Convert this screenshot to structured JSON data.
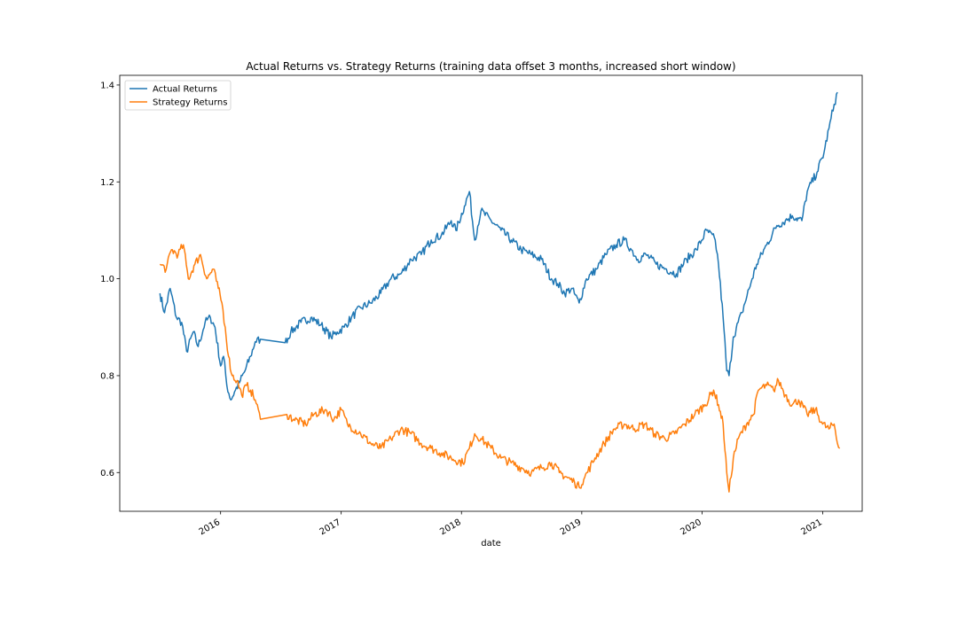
{
  "chart_data": {
    "type": "line",
    "title": "Actual Returns vs. Strategy Returns (training data offset 3 months, increased short window)",
    "xlabel": "date",
    "ylabel": "",
    "x_type": "date",
    "xlim": [
      "2015-03-01",
      "2021-05-01"
    ],
    "ylim": [
      0.52,
      1.42
    ],
    "x_ticks": [
      {
        "label": "2016",
        "date": "2016-01-01"
      },
      {
        "label": "2017",
        "date": "2017-01-01"
      },
      {
        "label": "2018",
        "date": "2018-01-01"
      },
      {
        "label": "2019",
        "date": "2019-01-01"
      },
      {
        "label": "2020",
        "date": "2020-01-01"
      },
      {
        "label": "2021",
        "date": "2021-01-01"
      }
    ],
    "y_ticks": [
      0.6,
      0.8,
      1.0,
      1.2,
      1.4
    ],
    "y_tick_labels": [
      "0.6",
      "0.8",
      "1.0",
      "1.2",
      "1.4"
    ],
    "grid": false,
    "legend_position": "top-left",
    "series": [
      {
        "name": "Actual Returns",
        "color": "#1f77b4",
        "points": [
          [
            "2015-07-01",
            0.97
          ],
          [
            "2015-07-15",
            0.93
          ],
          [
            "2015-08-01",
            0.98
          ],
          [
            "2015-08-20",
            0.92
          ],
          [
            "2015-09-05",
            0.91
          ],
          [
            "2015-09-20",
            0.85
          ],
          [
            "2015-10-10",
            0.89
          ],
          [
            "2015-10-25",
            0.86
          ],
          [
            "2015-11-15",
            0.91
          ],
          [
            "2015-12-01",
            0.92
          ],
          [
            "2015-12-15",
            0.9
          ],
          [
            "2016-01-01",
            0.82
          ],
          [
            "2016-01-10",
            0.84
          ],
          [
            "2016-01-20",
            0.78
          ],
          [
            "2016-02-01",
            0.75
          ],
          [
            "2016-02-15",
            0.77
          ],
          [
            "2016-03-01",
            0.79
          ],
          [
            "2016-03-15",
            0.81
          ],
          [
            "2016-04-01",
            0.84
          ],
          [
            "2016-04-15",
            0.87
          ],
          [
            "2016-05-01",
            0.875
          ],
          [
            "2016-07-15",
            0.868
          ],
          [
            "2016-08-01",
            0.89
          ],
          [
            "2016-09-01",
            0.91
          ],
          [
            "2016-10-01",
            0.92
          ],
          [
            "2016-11-01",
            0.905
          ],
          [
            "2016-12-01",
            0.88
          ],
          [
            "2016-12-20",
            0.89
          ],
          [
            "2017-01-10",
            0.9
          ],
          [
            "2017-02-01",
            0.92
          ],
          [
            "2017-03-01",
            0.94
          ],
          [
            "2017-04-01",
            0.95
          ],
          [
            "2017-05-01",
            0.97
          ],
          [
            "2017-06-01",
            1.0
          ],
          [
            "2017-07-01",
            1.01
          ],
          [
            "2017-08-01",
            1.04
          ],
          [
            "2017-09-01",
            1.05
          ],
          [
            "2017-10-01",
            1.08
          ],
          [
            "2017-11-01",
            1.09
          ],
          [
            "2017-12-01",
            1.12
          ],
          [
            "2017-12-15",
            1.1
          ],
          [
            "2018-01-10",
            1.15
          ],
          [
            "2018-01-25",
            1.18
          ],
          [
            "2018-02-10",
            1.08
          ],
          [
            "2018-03-01",
            1.14
          ],
          [
            "2018-04-01",
            1.12
          ],
          [
            "2018-05-01",
            1.1
          ],
          [
            "2018-06-01",
            1.08
          ],
          [
            "2018-07-01",
            1.06
          ],
          [
            "2018-08-01",
            1.05
          ],
          [
            "2018-09-01",
            1.04
          ],
          [
            "2018-10-01",
            1.0
          ],
          [
            "2018-10-20",
            0.99
          ],
          [
            "2018-11-10",
            0.97
          ],
          [
            "2018-12-01",
            0.98
          ],
          [
            "2018-12-24",
            0.95
          ],
          [
            "2019-01-15",
            1.0
          ],
          [
            "2019-02-15",
            1.02
          ],
          [
            "2019-03-15",
            1.05
          ],
          [
            "2019-04-15",
            1.07
          ],
          [
            "2019-05-10",
            1.08
          ],
          [
            "2019-06-01",
            1.06
          ],
          [
            "2019-06-20",
            1.04
          ],
          [
            "2019-07-15",
            1.05
          ],
          [
            "2019-08-15",
            1.03
          ],
          [
            "2019-09-15",
            1.02
          ],
          [
            "2019-10-15",
            1.01
          ],
          [
            "2019-11-15",
            1.04
          ],
          [
            "2019-12-15",
            1.06
          ],
          [
            "2020-01-15",
            1.1
          ],
          [
            "2020-02-10",
            1.08
          ],
          [
            "2020-02-20",
            1.03
          ],
          [
            "2020-03-05",
            0.92
          ],
          [
            "2020-03-16",
            0.81
          ],
          [
            "2020-03-23",
            0.8
          ],
          [
            "2020-04-05",
            0.88
          ],
          [
            "2020-05-01",
            0.93
          ],
          [
            "2020-06-01",
            1.0
          ],
          [
            "2020-06-15",
            1.03
          ],
          [
            "2020-07-15",
            1.07
          ],
          [
            "2020-08-15",
            1.11
          ],
          [
            "2020-09-10",
            1.12
          ],
          [
            "2020-10-01",
            1.13
          ],
          [
            "2020-10-30",
            1.12
          ],
          [
            "2020-11-15",
            1.18
          ],
          [
            "2020-12-15",
            1.22
          ],
          [
            "2021-01-05",
            1.26
          ],
          [
            "2021-01-20",
            1.31
          ],
          [
            "2021-02-05",
            1.36
          ],
          [
            "2021-02-15",
            1.385
          ]
        ]
      },
      {
        "name": "Strategy Returns",
        "color": "#ff7f0e",
        "points": [
          [
            "2015-07-01",
            1.03
          ],
          [
            "2015-07-20",
            1.02
          ],
          [
            "2015-08-05",
            1.06
          ],
          [
            "2015-08-25",
            1.05
          ],
          [
            "2015-09-10",
            1.07
          ],
          [
            "2015-09-25",
            1.0
          ],
          [
            "2015-10-15",
            1.03
          ],
          [
            "2015-11-01",
            1.05
          ],
          [
            "2015-11-20",
            1.0
          ],
          [
            "2015-12-10",
            1.02
          ],
          [
            "2015-12-25",
            0.98
          ],
          [
            "2016-01-05",
            0.95
          ],
          [
            "2016-01-15",
            0.9
          ],
          [
            "2016-01-25",
            0.84
          ],
          [
            "2016-02-05",
            0.8
          ],
          [
            "2016-02-20",
            0.79
          ],
          [
            "2016-03-05",
            0.76
          ],
          [
            "2016-03-20",
            0.78
          ],
          [
            "2016-04-01",
            0.77
          ],
          [
            "2016-04-15",
            0.75
          ],
          [
            "2016-05-01",
            0.71
          ],
          [
            "2016-07-20",
            0.72
          ],
          [
            "2016-08-10",
            0.71
          ],
          [
            "2016-09-15",
            0.7
          ],
          [
            "2016-10-10",
            0.72
          ],
          [
            "2016-11-15",
            0.73
          ],
          [
            "2016-12-10",
            0.71
          ],
          [
            "2017-01-01",
            0.73
          ],
          [
            "2017-01-20",
            0.7
          ],
          [
            "2017-03-01",
            0.68
          ],
          [
            "2017-04-01",
            0.66
          ],
          [
            "2017-05-01",
            0.65
          ],
          [
            "2017-06-01",
            0.67
          ],
          [
            "2017-07-01",
            0.69
          ],
          [
            "2017-08-01",
            0.68
          ],
          [
            "2017-09-01",
            0.66
          ],
          [
            "2017-10-01",
            0.65
          ],
          [
            "2017-11-01",
            0.64
          ],
          [
            "2017-12-01",
            0.63
          ],
          [
            "2018-01-05",
            0.62
          ],
          [
            "2018-01-25",
            0.65
          ],
          [
            "2018-02-10",
            0.68
          ],
          [
            "2018-03-01",
            0.67
          ],
          [
            "2018-04-01",
            0.65
          ],
          [
            "2018-05-01",
            0.63
          ],
          [
            "2018-06-01",
            0.62
          ],
          [
            "2018-07-01",
            0.61
          ],
          [
            "2018-08-01",
            0.6
          ],
          [
            "2018-09-01",
            0.61
          ],
          [
            "2018-10-01",
            0.62
          ],
          [
            "2018-10-25",
            0.6
          ],
          [
            "2018-12-10",
            0.58
          ],
          [
            "2018-12-24",
            0.57
          ],
          [
            "2019-01-10",
            0.59
          ],
          [
            "2019-02-10",
            0.63
          ],
          [
            "2019-03-10",
            0.66
          ],
          [
            "2019-04-10",
            0.69
          ],
          [
            "2019-05-10",
            0.7
          ],
          [
            "2019-06-10",
            0.69
          ],
          [
            "2019-07-10",
            0.7
          ],
          [
            "2019-08-10",
            0.68
          ],
          [
            "2019-09-10",
            0.67
          ],
          [
            "2019-10-10",
            0.68
          ],
          [
            "2019-11-10",
            0.7
          ],
          [
            "2019-12-10",
            0.72
          ],
          [
            "2020-01-10",
            0.74
          ],
          [
            "2020-02-05",
            0.77
          ],
          [
            "2020-02-20",
            0.74
          ],
          [
            "2020-03-05",
            0.7
          ],
          [
            "2020-03-16",
            0.6
          ],
          [
            "2020-03-23",
            0.56
          ],
          [
            "2020-04-05",
            0.63
          ],
          [
            "2020-04-20",
            0.67
          ],
          [
            "2020-05-15",
            0.7
          ],
          [
            "2020-06-05",
            0.72
          ],
          [
            "2020-06-20",
            0.77
          ],
          [
            "2020-07-15",
            0.78
          ],
          [
            "2020-08-05",
            0.77
          ],
          [
            "2020-08-20",
            0.79
          ],
          [
            "2020-09-10",
            0.76
          ],
          [
            "2020-10-01",
            0.74
          ],
          [
            "2020-10-20",
            0.75
          ],
          [
            "2020-11-15",
            0.72
          ],
          [
            "2020-12-10",
            0.73
          ],
          [
            "2021-01-01",
            0.7
          ],
          [
            "2021-01-20",
            0.69
          ],
          [
            "2021-02-05",
            0.7
          ],
          [
            "2021-02-15",
            0.66
          ],
          [
            "2021-02-22",
            0.65
          ]
        ]
      }
    ]
  }
}
